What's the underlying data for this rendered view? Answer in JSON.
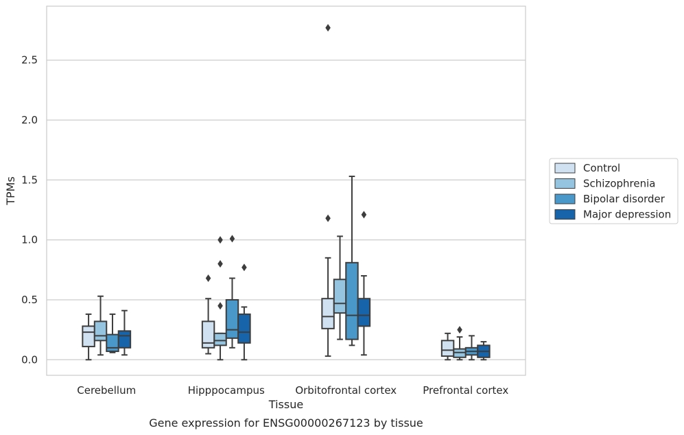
{
  "chart_data": {
    "type": "box",
    "title": "",
    "caption": "Gene expression for ENSG00000267123 by tissue",
    "xlabel": "Tissue",
    "ylabel": "TPMs",
    "ylim": [
      -0.13,
      2.95
    ],
    "yticks": [
      "0.0",
      "0.5",
      "1.0",
      "1.5",
      "2.0",
      "2.5"
    ],
    "grid": "horizontal",
    "legend_position": "right",
    "categories": [
      "Cerebellum",
      "Hipppocampus",
      "Orbitofrontal cortex",
      "Prefrontal cortex"
    ],
    "series": [
      {
        "name": "Control",
        "color": "#d0e1f2",
        "boxes": [
          {
            "whislo": 0.0,
            "q1": 0.11,
            "med": 0.23,
            "q3": 0.28,
            "whishi": 0.38,
            "fliers": []
          },
          {
            "whislo": 0.05,
            "q1": 0.1,
            "med": 0.14,
            "q3": 0.32,
            "whishi": 0.51,
            "fliers": [
              0.68
            ]
          },
          {
            "whislo": 0.03,
            "q1": 0.26,
            "med": 0.36,
            "q3": 0.51,
            "whishi": 0.85,
            "fliers": [
              1.18,
              2.77
            ]
          },
          {
            "whislo": 0.0,
            "q1": 0.03,
            "med": 0.08,
            "q3": 0.16,
            "whishi": 0.22,
            "fliers": []
          }
        ]
      },
      {
        "name": "Schizophrenia",
        "color": "#94c4df",
        "boxes": [
          {
            "whislo": 0.04,
            "q1": 0.16,
            "med": 0.2,
            "q3": 0.32,
            "whishi": 0.53,
            "fliers": []
          },
          {
            "whislo": 0.0,
            "q1": 0.12,
            "med": 0.16,
            "q3": 0.22,
            "whishi": 0.22,
            "fliers": [
              0.45,
              0.8,
              1.0
            ]
          },
          {
            "whislo": 0.17,
            "q1": 0.39,
            "med": 0.47,
            "q3": 0.67,
            "whishi": 1.03,
            "fliers": []
          },
          {
            "whislo": 0.0,
            "q1": 0.02,
            "med": 0.06,
            "q3": 0.09,
            "whishi": 0.19,
            "fliers": [
              0.25
            ]
          }
        ]
      },
      {
        "name": "Bipolar disorder",
        "color": "#4a98c9",
        "boxes": [
          {
            "whislo": 0.06,
            "q1": 0.07,
            "med": 0.1,
            "q3": 0.21,
            "whishi": 0.38,
            "fliers": []
          },
          {
            "whislo": 0.1,
            "q1": 0.18,
            "med": 0.25,
            "q3": 0.5,
            "whishi": 0.68,
            "fliers": [
              1.01
            ]
          },
          {
            "whislo": 0.12,
            "q1": 0.17,
            "med": 0.37,
            "q3": 0.81,
            "whishi": 1.53,
            "fliers": []
          },
          {
            "whislo": 0.0,
            "q1": 0.04,
            "med": 0.07,
            "q3": 0.1,
            "whishi": 0.2,
            "fliers": []
          }
        ]
      },
      {
        "name": "Major depression",
        "color": "#1764ab",
        "boxes": [
          {
            "whislo": 0.04,
            "q1": 0.1,
            "med": 0.2,
            "q3": 0.24,
            "whishi": 0.41,
            "fliers": []
          },
          {
            "whislo": 0.0,
            "q1": 0.14,
            "med": 0.23,
            "q3": 0.38,
            "whishi": 0.44,
            "fliers": [
              0.77
            ]
          },
          {
            "whislo": 0.04,
            "q1": 0.28,
            "med": 0.37,
            "q3": 0.51,
            "whishi": 0.7,
            "fliers": [
              1.21
            ]
          },
          {
            "whislo": 0.0,
            "q1": 0.02,
            "med": 0.07,
            "q3": 0.12,
            "whishi": 0.15,
            "fliers": []
          }
        ]
      }
    ]
  }
}
